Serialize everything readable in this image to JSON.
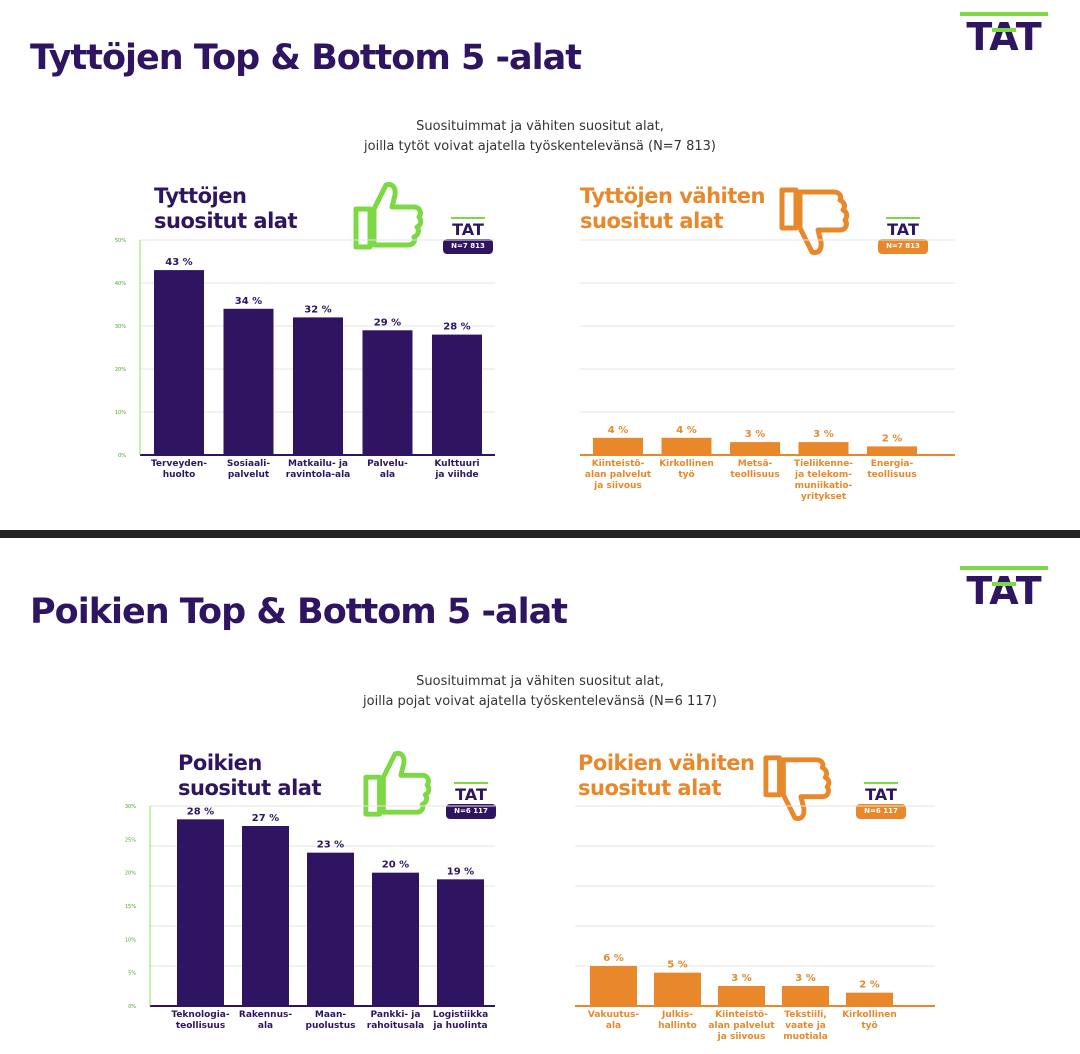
{
  "logo_text": "TAT",
  "colors": {
    "purple": "#2f1561",
    "orange": "#e8882a",
    "green": "#7cd943",
    "grid_green": "#8fe05a"
  },
  "icons": {
    "like": "thumbs-up-icon",
    "dislike": "thumbs-down-icon"
  },
  "sections": [
    {
      "headline": "Tyttöjen Top & Bottom 5 -alat",
      "subtitle_line1": "Suosituimmat ja vähiten suositut alat,",
      "subtitle_line2": "joilla tytöt voivat ajatella työskentelevänsä (N=7 813)",
      "top_title_1": "Tyttöjen",
      "top_title_2": "suositut alat",
      "bottom_title_1": "Tyttöjen vähiten",
      "bottom_title_2": "suositut alat",
      "badge": "N=7 813"
    },
    {
      "headline": "Poikien Top & Bottom 5 -alat",
      "subtitle_line1": "Suosituimmat ja vähiten suositut alat,",
      "subtitle_line2": "joilla pojat voivat ajatella työskentelevänsä (N=6 117)",
      "top_title_1": "Poikien",
      "top_title_2": "suositut alat",
      "bottom_title_1": "Poikien vähiten",
      "bottom_title_2": "suositut alat",
      "badge": "N=6 117"
    }
  ],
  "chart_data": [
    {
      "type": "bar",
      "title": "Tyttöjen suositut alat",
      "categories": [
        "Terveyden-\nhuolto",
        "Sosiaali-\npalvelut",
        "Matkailu- ja\nravintola-ala",
        "Palvelu-\nala",
        "Kulttuuri\nja viihde"
      ],
      "values": [
        43,
        34,
        32,
        29,
        28
      ],
      "labels": [
        "43 %",
        "34 %",
        "32 %",
        "29 %",
        "28 %"
      ],
      "ylim": [
        0,
        50
      ],
      "yticks": [
        "0%",
        "10%",
        "20%",
        "30%",
        "40%",
        "50%"
      ],
      "grid": true,
      "badge": "N=7 813"
    },
    {
      "type": "bar",
      "title": "Tyttöjen vähiten suositut alat",
      "categories": [
        "Kiinteistö-\nalan palvelut\nja siivous",
        "Kirkollinen\ntyö",
        "Metsä-\nteollisuus",
        "Tieliikenne-\nja telekom-\nmuniikatio-\nyritykset",
        "Energia-\nteollisuus"
      ],
      "values": [
        4,
        4,
        3,
        3,
        2
      ],
      "labels": [
        "4 %",
        "4 %",
        "3 %",
        "3 %",
        "2 %"
      ],
      "ylim": [
        0,
        50
      ],
      "grid": true,
      "badge": "N=7 813"
    },
    {
      "type": "bar",
      "title": "Poikien suositut alat",
      "categories": [
        "Teknologia-\nteollisuus",
        "Rakennus-\nala",
        "Maan-\npuolustus",
        "Pankki- ja\nrahoitusala",
        "Logistiikka\nja huolinta"
      ],
      "values": [
        28,
        27,
        23,
        20,
        19
      ],
      "labels": [
        "28 %",
        "27 %",
        "23 %",
        "20 %",
        "19 %"
      ],
      "ylim": [
        0,
        30
      ],
      "yticks": [
        "0%",
        "5%",
        "10%",
        "15%",
        "20%",
        "25%",
        "30%"
      ],
      "grid": true,
      "badge": "N=6 117"
    },
    {
      "type": "bar",
      "title": "Poikien vähiten suositut alat",
      "categories": [
        "Vakuutus-\nala",
        "Julkis-\nhallinto",
        "Kiinteistö-\nalan palvelut\nja siivous",
        "Tekstiili,\nvaate ja\nmuotiala",
        "Kirkollinen\ntyö"
      ],
      "values": [
        6,
        5,
        3,
        3,
        2
      ],
      "labels": [
        "6 %",
        "5 %",
        "3 %",
        "3 %",
        "2 %"
      ],
      "ylim": [
        0,
        30
      ],
      "grid": true,
      "badge": "N=6 117"
    }
  ]
}
